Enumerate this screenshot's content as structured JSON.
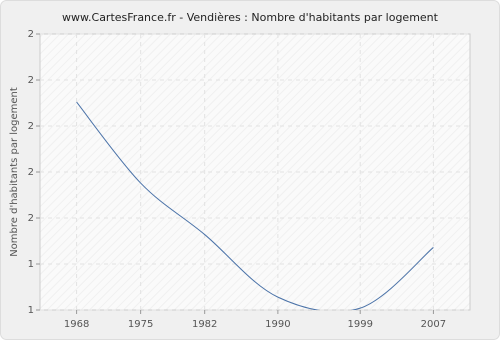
{
  "chart_data": {
    "type": "line",
    "title": "www.CartesFrance.fr - Vendières : Nombre d'habitants par logement",
    "y_label": "Nombre d'habitants par logement",
    "x": [
      1968,
      1975,
      1982,
      1990,
      1999,
      2007
    ],
    "series": [
      {
        "name": "Nombre d'habitants par logement",
        "color": "#4a72a8",
        "values": [
          2.13,
          1.69,
          1.41,
          1.07,
          1.01,
          1.34
        ]
      }
    ],
    "xlim": [
      1964,
      2011
    ],
    "xticks": [
      1968,
      1975,
      1982,
      1990,
      1999,
      2007
    ],
    "ylim": [
      1,
      2.5
    ],
    "yticks": [
      {
        "value": 1,
        "label": "1"
      },
      {
        "value": 1.25,
        "label": "1"
      },
      {
        "value": 1.5,
        "label": "2"
      },
      {
        "value": 1.75,
        "label": "2"
      },
      {
        "value": 2,
        "label": "2"
      },
      {
        "value": 2.25,
        "label": "2"
      },
      {
        "value": 2.5,
        "label": "2"
      }
    ],
    "grid": true
  }
}
